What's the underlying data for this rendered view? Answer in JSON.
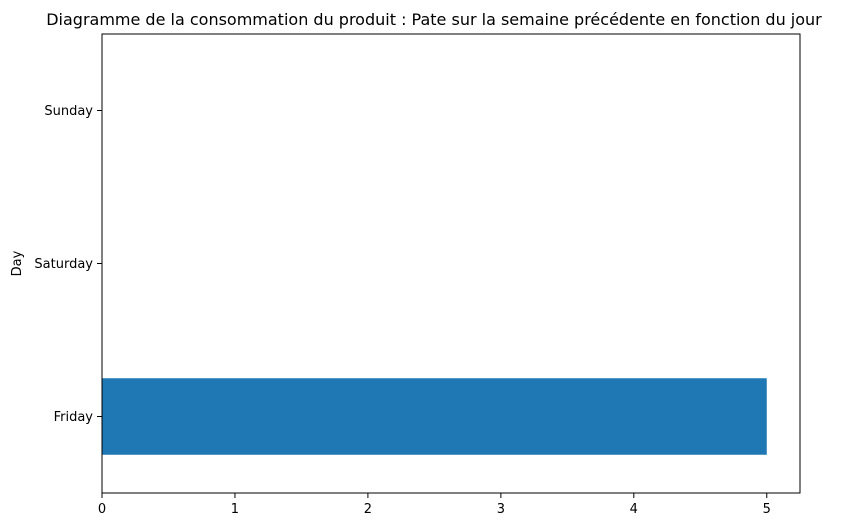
{
  "chart_data": {
    "type": "bar",
    "orientation": "horizontal",
    "title": "Diagramme de la consommation du produit : Pate  sur la semaine précédente en fonction du jour",
    "xlabel": "",
    "ylabel": "Day",
    "categories": [
      "Friday",
      "Saturday",
      "Sunday"
    ],
    "values": [
      5,
      0,
      0
    ],
    "xlim": [
      0,
      5.25
    ],
    "xticks": [
      0,
      1,
      2,
      3,
      4,
      5
    ],
    "grid": false,
    "bar_color": "#1f77b4"
  }
}
